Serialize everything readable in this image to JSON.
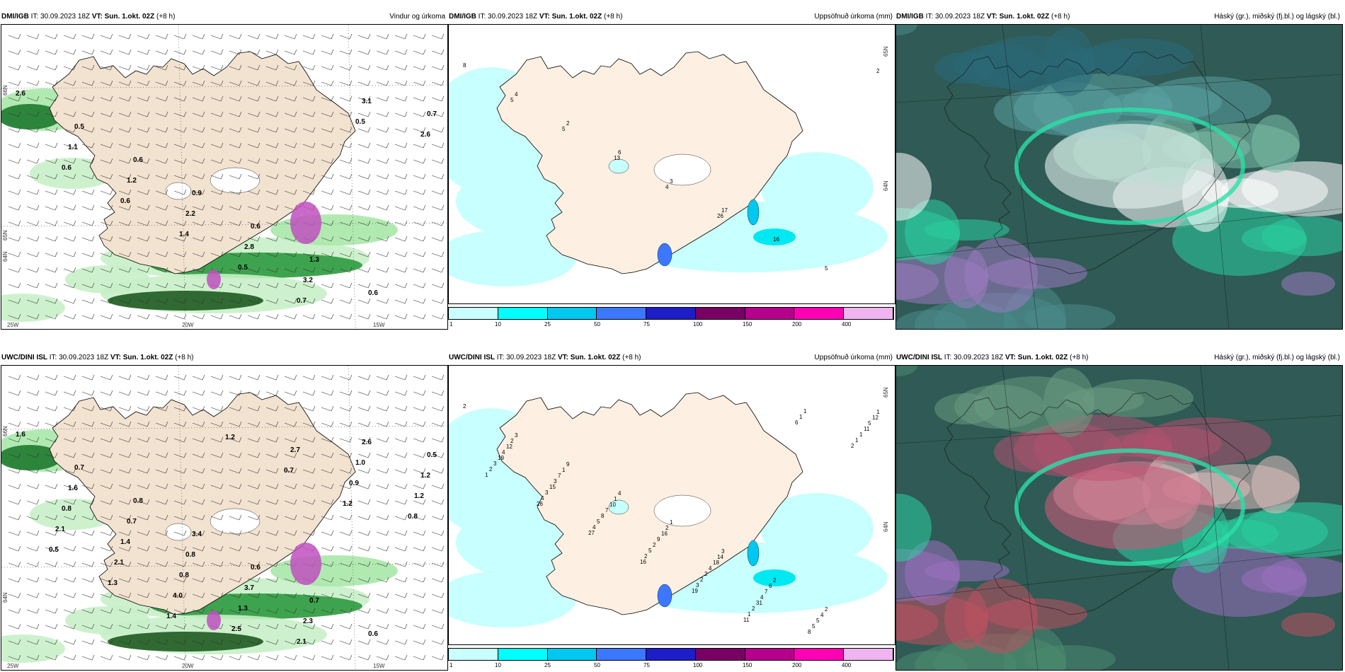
{
  "panels": [
    {
      "id": "p11",
      "model": "DMI/IGB",
      "it_label": "IT:",
      "it_value": "30.09.2023 18Z",
      "vt_label": "VT:",
      "vt_value": "Sun. 1.okt. 02Z",
      "lead": "(+8 h)",
      "product": "Vindur og úrkoma",
      "type": "wind",
      "values": [
        "2.6",
        "0.5",
        "0.6",
        "0.9",
        "0.6",
        "1.3",
        "0.6",
        "0.7",
        "1.1",
        "1.2",
        "2.2",
        "2.8",
        "3.2",
        "3.1",
        "2.6",
        "0.6",
        "0.6",
        "1.4",
        "0.5",
        "0.7",
        "0.5"
      ],
      "axis": {
        "lat": [
          "66N",
          "64N",
          "65N"
        ],
        "lon": [
          "20W",
          "15W",
          "25W"
        ]
      }
    },
    {
      "id": "p12",
      "model": "DMI/IGB",
      "it_label": "IT:",
      "it_value": "30.09.2023 18Z",
      "vt_label": "VT:",
      "vt_value": "Sun. 1.okt. 02Z",
      "lead": "(+8 h)",
      "product": "Uppsöfnuð úrkoma (mm)",
      "type": "precip",
      "values": [
        "8",
        "4",
        "2",
        "6",
        "3",
        "17",
        "16",
        "5",
        "2",
        "5",
        "5",
        "13",
        "4",
        "26"
      ],
      "axis": {
        "lat": [
          "65N",
          "64N"
        ],
        "lon": []
      }
    },
    {
      "id": "p13",
      "model": "DMI/IGB",
      "it_label": "IT:",
      "it_value": "30.09.2023 18Z",
      "vt_label": "VT:",
      "vt_value": "Sun. 1.okt. 02Z",
      "lead": "(+8 h)",
      "product": "Háský (gr.), miðský (fj.bl.) og lágský (bl.)",
      "type": "cloud",
      "values": [],
      "axis": {
        "lat": [],
        "lon": []
      }
    },
    {
      "id": "p21",
      "model": "UWC/DINI ISL",
      "it_label": "IT:",
      "it_value": "30.09.2023 18Z",
      "vt_label": "VT:",
      "vt_value": "Sun. 1.okt. 02Z",
      "lead": "(+8 h)",
      "product": "",
      "type": "wind",
      "values": [
        "1.6",
        "0.7",
        "0.8",
        "3.4",
        "0.6",
        "0.7",
        "0.6",
        "0.5",
        "1.6",
        "0.7",
        "0.8",
        "3.7",
        "2.3",
        "2.6",
        "1.2",
        "0.8",
        "1.4",
        "0.8",
        "1.3",
        "2.1",
        "1.0",
        "1.2",
        "2.1",
        "2.1",
        "4.0",
        "2.5",
        "2.7",
        "0.9",
        "0.8",
        "0.5",
        "1.3",
        "1.4",
        "1.2",
        "0.7",
        "1.2"
      ],
      "axis": {
        "lat": [
          "66N",
          "64N"
        ],
        "lon": [
          "20W",
          "15W",
          "25W"
        ]
      }
    },
    {
      "id": "p22",
      "model": "UWC/DINI ISL",
      "it_label": "IT:",
      "it_value": "30.09.2023 18Z",
      "vt_label": "VT:",
      "vt_value": "Sun. 1.okt. 02Z",
      "lead": "(+8 h)",
      "product": "Uppsöfnuð úrkoma (mm)",
      "type": "precip",
      "values": [
        "2",
        "3",
        "9",
        "4",
        "1",
        "3",
        "2",
        "2",
        "1",
        "2",
        "1",
        "1",
        "2",
        "14",
        "6",
        "4",
        "12",
        "12",
        "7",
        "10",
        "16",
        "18",
        "7",
        "5",
        "5",
        "4",
        "3",
        "7",
        "9",
        "4",
        "4",
        "5",
        "11",
        "19",
        "15",
        "8",
        "2",
        "2",
        "31",
        "8",
        "1",
        "3",
        "3",
        "5",
        "5",
        "2",
        "2",
        "1",
        "1",
        "2",
        "4",
        "4",
        "2",
        "3",
        "1",
        "1",
        "2",
        "1",
        "26",
        "27",
        "16",
        "19",
        "11",
        "6"
      ],
      "axis": {
        "lat": [
          "65N",
          "64N"
        ],
        "lon": []
      }
    },
    {
      "id": "p23",
      "model": "UWC/DINI ISL",
      "it_label": "IT:",
      "it_value": "30.09.2023 18Z",
      "vt_label": "VT:",
      "vt_value": "Sun. 1.okt. 02Z",
      "lead": "(+8 h)",
      "product": "Háský (gr.), miðský (fj.bl.) og lágský (bl.)",
      "type": "cloud",
      "values": [],
      "axis": {
        "lat": [],
        "lon": []
      }
    }
  ],
  "colorbar": {
    "ticks": [
      "1",
      "10",
      "25",
      "50",
      "75",
      "100",
      "150",
      "200",
      "400"
    ],
    "colors": [
      "#c8ffff",
      "#00ffff",
      "#00c8f0",
      "#3c78ff",
      "#1e1ec8",
      "#780064",
      "#b4008c",
      "#ff00b4",
      "#f0b4f0"
    ]
  }
}
